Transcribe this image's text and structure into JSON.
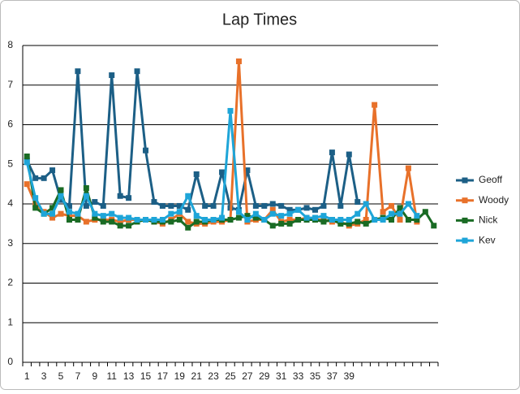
{
  "chart_data": {
    "type": "line",
    "title": "Lap Times",
    "categories": [
      1,
      null,
      3,
      null,
      5,
      null,
      7,
      null,
      9,
      null,
      11,
      null,
      13,
      null,
      15,
      null,
      17,
      null,
      19,
      null,
      21,
      null,
      23,
      null,
      25,
      null,
      27,
      null,
      29,
      null,
      31,
      null,
      33,
      null,
      35,
      null,
      37,
      null,
      39,
      null,
      null,
      null,
      null,
      null,
      null,
      null,
      null,
      null,
      null
    ],
    "ylim": [
      0,
      8
    ],
    "yticks": [
      0,
      1,
      2,
      3,
      4,
      5,
      6,
      7,
      8
    ],
    "grid": true,
    "legend": "right",
    "series": [
      {
        "name": "Geoff",
        "color": "#1c5f86",
        "values": [
          5.1,
          4.65,
          4.65,
          4.85,
          4.1,
          3.95,
          7.35,
          3.95,
          4.05,
          3.95,
          7.25,
          4.2,
          4.15,
          7.35,
          5.35,
          4.05,
          3.95,
          3.95,
          3.95,
          3.85,
          4.75,
          3.95,
          3.95,
          4.8,
          3.9,
          3.85,
          4.85,
          3.95,
          3.95,
          4.0,
          3.95,
          3.85,
          3.85,
          3.9,
          3.85,
          3.95,
          5.3,
          3.95,
          5.25,
          4.05,
          null,
          null,
          null,
          null,
          null,
          null,
          null,
          null,
          null
        ]
      },
      {
        "name": "Woody",
        "color": "#e8712a",
        "values": [
          4.5,
          4.0,
          3.8,
          3.65,
          3.75,
          3.7,
          3.7,
          3.55,
          3.6,
          3.6,
          3.6,
          3.55,
          3.6,
          3.6,
          3.6,
          3.55,
          3.5,
          3.6,
          3.75,
          3.55,
          3.5,
          3.5,
          3.55,
          3.55,
          3.6,
          7.6,
          3.55,
          3.6,
          3.6,
          3.85,
          3.55,
          3.6,
          3.6,
          3.65,
          3.6,
          3.6,
          3.55,
          3.55,
          3.45,
          3.5,
          3.6,
          6.5,
          3.8,
          3.95,
          3.6,
          4.9,
          3.55,
          null,
          null
        ]
      },
      {
        "name": "Nick",
        "color": "#1a6b24",
        "values": [
          5.2,
          3.9,
          3.75,
          3.9,
          4.35,
          3.6,
          3.6,
          4.4,
          3.65,
          3.55,
          3.55,
          3.45,
          3.45,
          3.55,
          3.6,
          3.55,
          3.55,
          3.55,
          3.6,
          3.4,
          3.55,
          3.55,
          3.6,
          3.6,
          3.6,
          3.65,
          3.7,
          3.65,
          3.6,
          3.45,
          3.5,
          3.5,
          3.6,
          3.6,
          3.6,
          3.55,
          3.6,
          3.5,
          3.5,
          3.55,
          3.5,
          3.6,
          3.65,
          3.6,
          3.9,
          3.6,
          3.6,
          3.8,
          3.45
        ]
      },
      {
        "name": "Kev",
        "color": "#1ea5d8",
        "values": [
          5.05,
          4.15,
          3.75,
          3.75,
          4.2,
          3.8,
          3.75,
          4.2,
          3.75,
          3.7,
          3.75,
          3.65,
          3.65,
          3.6,
          3.6,
          3.6,
          3.6,
          3.75,
          3.8,
          4.2,
          3.7,
          3.6,
          3.6,
          3.65,
          6.35,
          3.8,
          3.6,
          3.75,
          3.6,
          3.75,
          3.7,
          3.75,
          3.85,
          3.65,
          3.65,
          3.7,
          3.6,
          3.6,
          3.6,
          3.75,
          4.0,
          3.6,
          3.6,
          3.75,
          3.75,
          4.0,
          3.7,
          null,
          null
        ]
      }
    ]
  }
}
